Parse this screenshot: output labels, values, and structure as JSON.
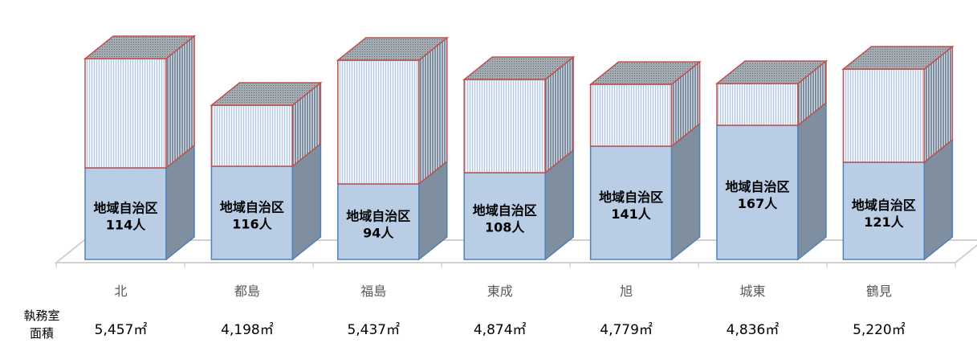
{
  "chart_data": {
    "type": "bar",
    "stacked": true,
    "three_d": true,
    "categories": [
      "北",
      "都島",
      "福島",
      "東成",
      "旭",
      "城東",
      "鶴見"
    ],
    "series": [
      {
        "color": "#b9cde5",
        "border": "#4f81bd",
        "values": [
          114,
          116,
          94,
          108,
          141,
          167,
          121
        ],
        "data_labels": [
          "地域自治区\n114人",
          "地域自治区\n116人",
          "地域自治区\n94人",
          "地域自治区\n108人",
          "地域自治区\n141人",
          "地域自治区\n167人",
          "地域自治区\n121人"
        ]
      },
      {
        "color": "#dbe5f1",
        "border": "#c0504d",
        "values": [
          136,
          76,
          154,
          116,
          77,
          52,
          116
        ]
      }
    ],
    "row_label": "執務室\n面積",
    "office_area": [
      "5,457㎡",
      "4,198㎡",
      "5,437㎡",
      "4,874㎡",
      "4,779㎡",
      "4,836㎡",
      "5,220㎡"
    ],
    "ylim": [
      0,
      260
    ],
    "grid": false,
    "legend": "none"
  }
}
